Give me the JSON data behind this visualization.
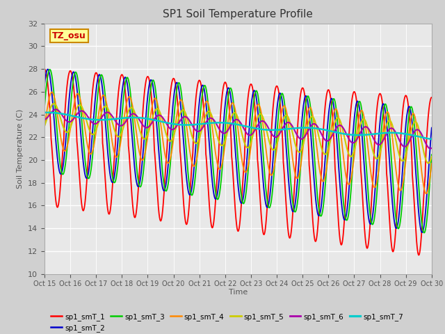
{
  "title": "SP1 Soil Temperature Profile",
  "xlabel": "Time",
  "ylabel": "Soil Temperature (C)",
  "ylim": [
    10,
    32
  ],
  "annotation_text": "TZ_osu",
  "annotation_color": "#cc0000",
  "annotation_bg": "#ffff99",
  "annotation_border": "#cc8800",
  "fig_bg": "#d0d0d0",
  "plot_bg": "#e8e8e8",
  "series_order": [
    "sp1_smT_1",
    "sp1_smT_2",
    "sp1_smT_3",
    "sp1_smT_4",
    "sp1_smT_5",
    "sp1_smT_6",
    "sp1_smT_7"
  ],
  "series": {
    "sp1_smT_1": {
      "color": "#ff0000",
      "lw": 1.3
    },
    "sp1_smT_2": {
      "color": "#0000cc",
      "lw": 1.3
    },
    "sp1_smT_3": {
      "color": "#00cc00",
      "lw": 1.3
    },
    "sp1_smT_4": {
      "color": "#ff8800",
      "lw": 1.3
    },
    "sp1_smT_5": {
      "color": "#cccc00",
      "lw": 1.5
    },
    "sp1_smT_6": {
      "color": "#aa00aa",
      "lw": 1.5
    },
    "sp1_smT_7": {
      "color": "#00cccc",
      "lw": 1.8
    }
  },
  "xtick_labels": [
    "Oct 15",
    "Oct 16",
    "Oct 17",
    "Oct 18",
    "Oct 19",
    "Oct 20",
    "Oct 21",
    "Oct 22",
    "Oct 23",
    "Oct 24",
    "Oct 25",
    "Oct 26",
    "Oct 27",
    "Oct 28",
    "Oct 29",
    "Oct 30"
  ],
  "xtick_positions": [
    0,
    1,
    2,
    3,
    4,
    5,
    6,
    7,
    8,
    9,
    10,
    11,
    12,
    13,
    14,
    15
  ]
}
